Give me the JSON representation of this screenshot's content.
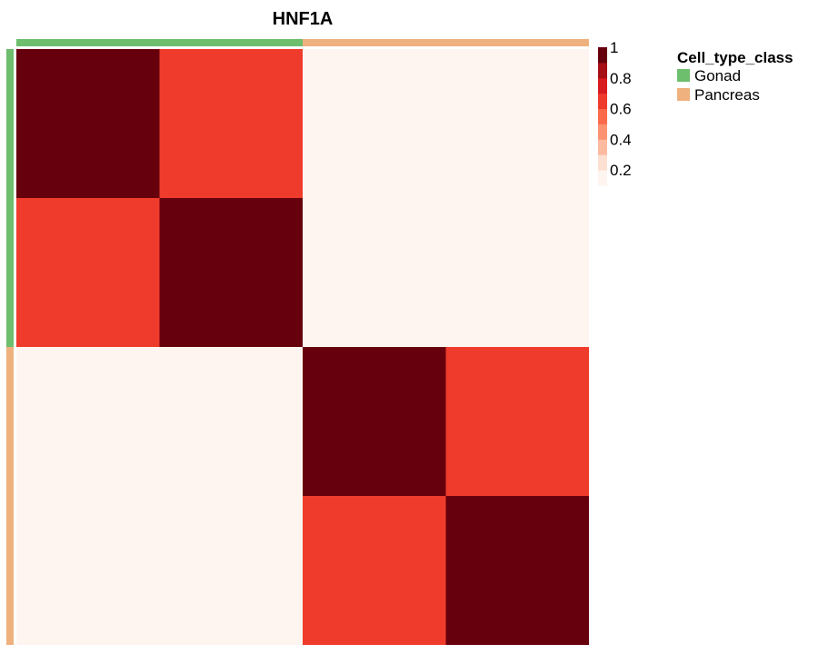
{
  "chart_data": {
    "type": "heatmap",
    "title": "HNF1A",
    "rows": 4,
    "cols": 4,
    "values": [
      [
        1.0,
        0.68,
        0.1,
        0.1
      ],
      [
        0.68,
        1.0,
        0.1,
        0.1
      ],
      [
        0.1,
        0.1,
        1.0,
        0.62
      ],
      [
        0.1,
        0.1,
        0.62,
        1.0
      ]
    ],
    "annotation": {
      "name": "Cell_type_class",
      "row_groups": [
        "Gonad",
        "Gonad",
        "Pancreas",
        "Pancreas"
      ],
      "col_groups": [
        "Gonad",
        "Gonad",
        "Pancreas",
        "Pancreas"
      ]
    },
    "colorbar": {
      "range": [
        0.1,
        1.0
      ],
      "ticks": [
        "1",
        "0.8",
        "0.6",
        "0.4",
        "0.2"
      ],
      "tick_values": [
        1.0,
        0.8,
        0.6,
        0.4,
        0.2
      ],
      "bins": [
        {
          "value": 0.15,
          "color": "#fff5f0"
        },
        {
          "value": 0.25,
          "color": "#fee0d2"
        },
        {
          "value": 0.35,
          "color": "#fcbba1"
        },
        {
          "value": 0.45,
          "color": "#fc9272"
        },
        {
          "value": 0.55,
          "color": "#fb6a4a"
        },
        {
          "value": 0.65,
          "color": "#ef3b2c"
        },
        {
          "value": 0.75,
          "color": "#d81b1f"
        },
        {
          "value": 0.85,
          "color": "#a50f15"
        },
        {
          "value": 0.95,
          "color": "#67000d"
        }
      ]
    },
    "legend": {
      "title": "Cell_type_class",
      "entries": [
        {
          "label": "Gonad",
          "color": "#6dbe6d"
        },
        {
          "label": "Pancreas",
          "color": "#efb17e"
        }
      ]
    }
  }
}
